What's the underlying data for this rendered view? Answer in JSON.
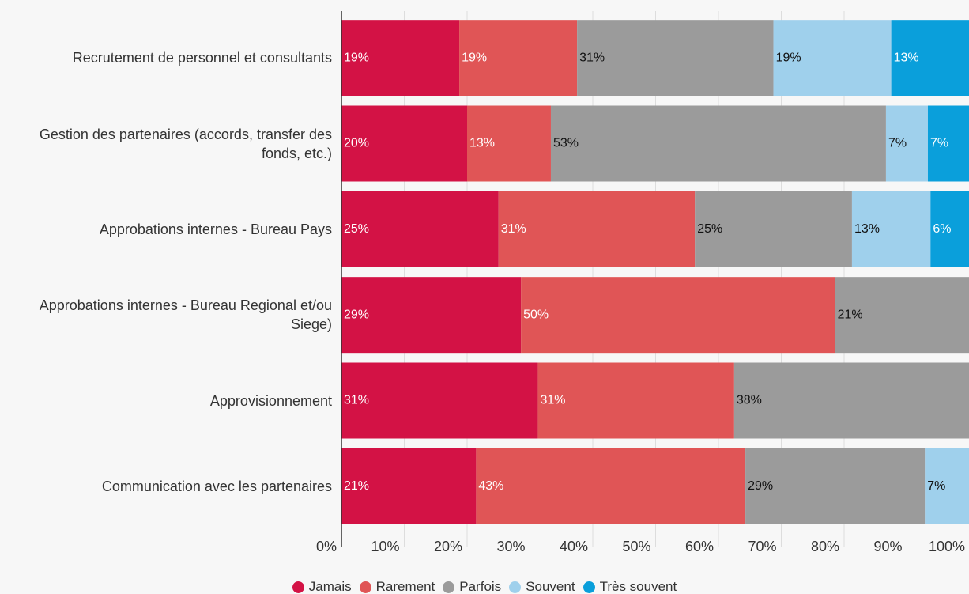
{
  "chart_data": {
    "type": "stacked-bar",
    "categories": [
      "Recrutement de personnel et consultants",
      "Gestion des partenaires (accords, transfer des fonds, etc.)",
      "Approbations internes - Bureau Pays",
      "Approbations internes - Bureau Regional et/ou Siege)",
      "Approvisionnement",
      "Communication avec les partenaires"
    ],
    "series": [
      {
        "name": "Jamais",
        "color": "#d31245",
        "label_color": "#ffffff",
        "values": [
          18.75,
          20,
          25,
          28.57,
          31.25,
          21.43
        ],
        "value_labels": [
          "19%",
          "20%",
          "25%",
          "29%",
          "31%",
          "21%"
        ]
      },
      {
        "name": "Rarement",
        "color": "#e05556",
        "label_color": "#ffffff",
        "values": [
          18.75,
          13.33,
          31.25,
          50,
          31.25,
          42.86
        ],
        "value_labels": [
          "19%",
          "13%",
          "31%",
          "50%",
          "31%",
          "43%"
        ]
      },
      {
        "name": "Parfois",
        "color": "#9b9b9b",
        "label_color": "#111111",
        "values": [
          31.25,
          53.33,
          25,
          21.43,
          37.5,
          28.57
        ],
        "value_labels": [
          "31%",
          "53%",
          "25%",
          "21%",
          "38%",
          "29%"
        ]
      },
      {
        "name": "Souvent",
        "color": "#9fd0ec",
        "label_color": "#111111",
        "values": [
          18.75,
          6.67,
          12.5,
          null,
          null,
          7.14
        ],
        "value_labels": [
          "19%",
          "7%",
          "13%",
          null,
          null,
          "7%"
        ]
      },
      {
        "name": "Très souvent",
        "color": "#0a9fdb",
        "label_color": "#ffffff",
        "values": [
          12.5,
          6.67,
          6.25,
          null,
          null,
          null
        ],
        "value_labels": [
          "13%",
          "7%",
          "6%",
          null,
          null,
          null
        ]
      }
    ],
    "xlim": [
      0,
      100
    ],
    "xticks": [
      {
        "value": 0,
        "label": "0%"
      },
      {
        "value": 10,
        "label": "10%"
      },
      {
        "value": 20,
        "label": "20%"
      },
      {
        "value": 30,
        "label": "30%"
      },
      {
        "value": 40,
        "label": "40%"
      },
      {
        "value": 50,
        "label": "50%"
      },
      {
        "value": 60,
        "label": "60%"
      },
      {
        "value": 70,
        "label": "70%"
      },
      {
        "value": 80,
        "label": "80%"
      },
      {
        "value": 90,
        "label": "90%"
      },
      {
        "value": 100,
        "label": "100%"
      }
    ],
    "grid": true,
    "legend": "bottom"
  }
}
